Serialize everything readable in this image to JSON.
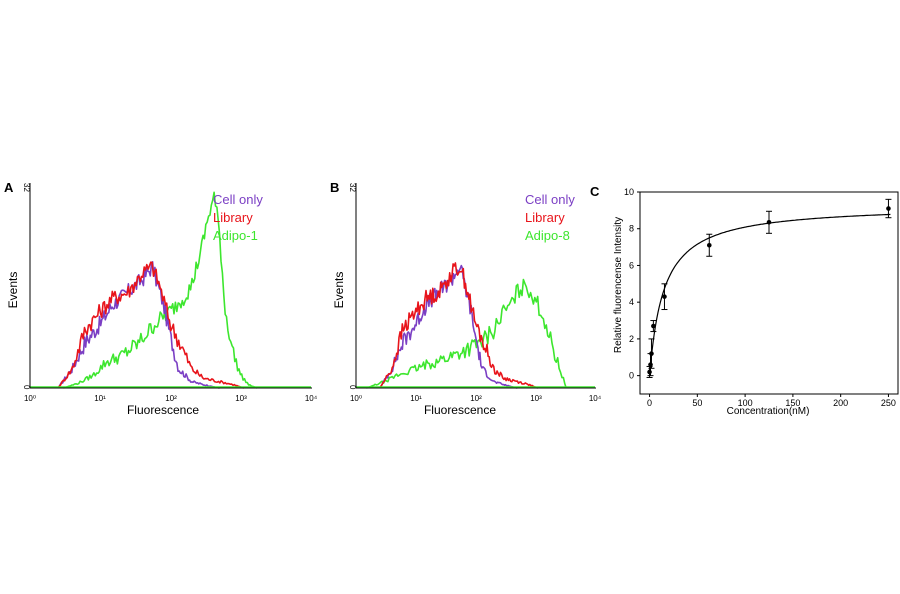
{
  "chart_data": [
    {
      "panel": "A",
      "type": "line",
      "xlabel": "Fluorescence",
      "ylabel": "Events",
      "xscale": "log",
      "xlim": [
        1,
        10000
      ],
      "ylim": [
        0,
        32
      ],
      "xticks": [
        "10⁰",
        "10¹",
        "10²",
        "10³",
        "10⁴"
      ],
      "yticks": [
        "0",
        "32"
      ],
      "legend_position": "top-right",
      "series": [
        {
          "name": "Cell only",
          "color": "#7b3fc4",
          "x": [
            2.5,
            4,
            6,
            10,
            15,
            25,
            40,
            55,
            80,
            100,
            130,
            200,
            300,
            500
          ],
          "y": [
            0,
            3,
            7,
            10,
            13,
            15,
            17,
            19,
            13,
            8,
            3,
            1,
            0.5,
            0
          ]
        },
        {
          "name": "Library",
          "color": "#e8141b",
          "x": [
            2.5,
            4,
            6,
            10,
            15,
            25,
            40,
            55,
            70,
            100,
            150,
            200,
            300,
            500,
            800,
            1100
          ],
          "y": [
            0,
            3,
            9,
            12,
            14,
            15,
            18,
            19,
            16,
            10,
            6,
            3,
            1.5,
            1,
            0.5,
            0
          ]
        },
        {
          "name": "Adipo-1",
          "color": "#3de62e",
          "x": [
            3,
            5,
            8,
            12,
            20,
            35,
            60,
            100,
            150,
            200,
            280,
            350,
            420,
            500,
            600,
            800,
            1000,
            1300,
            1700
          ],
          "y": [
            0,
            0.8,
            2,
            4,
            5,
            7,
            10,
            12,
            14,
            16,
            22,
            27,
            30,
            24,
            12,
            5,
            2,
            0.5,
            0
          ]
        }
      ]
    },
    {
      "panel": "B",
      "type": "line",
      "xlabel": "Fluorescence",
      "ylabel": "Events",
      "xscale": "log",
      "xlim": [
        1,
        10000
      ],
      "ylim": [
        0,
        32
      ],
      "xticks": [
        "10⁰",
        "10¹",
        "10²",
        "10³",
        "10⁴"
      ],
      "yticks": [
        "0",
        "32"
      ],
      "legend_position": "top-right",
      "series": [
        {
          "name": "Cell only",
          "color": "#7b3fc4",
          "x": [
            2.5,
            4,
            6,
            10,
            15,
            25,
            40,
            55,
            80,
            100,
            130,
            200,
            300,
            500
          ],
          "y": [
            0,
            3,
            7,
            10,
            13,
            15,
            17,
            19,
            13,
            8,
            3,
            1,
            0.5,
            0
          ]
        },
        {
          "name": "Library",
          "color": "#e8141b",
          "x": [
            2.5,
            4,
            6,
            10,
            15,
            25,
            40,
            55,
            70,
            100,
            150,
            200,
            300,
            500,
            800,
            1100
          ],
          "y": [
            0,
            3,
            9,
            12,
            14,
            15,
            18,
            19,
            16,
            10,
            6,
            3,
            1.5,
            1,
            0.5,
            0
          ]
        },
        {
          "name": "Adipo-8",
          "color": "#3de62e",
          "x": [
            1.5,
            3,
            5,
            10,
            20,
            40,
            70,
            120,
            200,
            300,
            400,
            500,
            700,
            1000,
            1500,
            2000,
            2800,
            3300
          ],
          "y": [
            0,
            1,
            2,
            3,
            4,
            5,
            6,
            7,
            9,
            12,
            13,
            15,
            16,
            14,
            10,
            6,
            2,
            0
          ]
        }
      ]
    },
    {
      "panel": "C",
      "type": "scatter",
      "xlabel": "Concentration(nM)",
      "ylabel": "Relative fluorencense Intensity",
      "xlim": [
        -10,
        260
      ],
      "ylim": [
        -1,
        10
      ],
      "xticks": [
        0,
        50,
        100,
        150,
        200,
        250
      ],
      "yticks": [
        0,
        2,
        4,
        6,
        8,
        10
      ],
      "points": [
        {
          "x": 0,
          "y": 0.2,
          "err": 0.3
        },
        {
          "x": 1,
          "y": 0.6,
          "err": 0.6
        },
        {
          "x": 2,
          "y": 1.2,
          "err": 0.8
        },
        {
          "x": 4,
          "y": 2.7,
          "err": 0.3
        },
        {
          "x": 15.6,
          "y": 4.3,
          "err": 0.7
        },
        {
          "x": 62.5,
          "y": 7.1,
          "err": 0.6
        },
        {
          "x": 125,
          "y": 8.35,
          "err": 0.6
        },
        {
          "x": 250,
          "y": 9.1,
          "err": 0.5
        }
      ],
      "fit": {
        "model": "one-site binding",
        "Bmax": 9.3,
        "Kd": 15
      }
    }
  ],
  "panels": {
    "a": {
      "letter": "A",
      "xlabel": "Fluorescence",
      "ylabel": "Events",
      "ytop": "32",
      "ybottom": "0",
      "xticks": [
        "10⁰",
        "10¹",
        "10²",
        "10³",
        "10⁴"
      ],
      "legend": [
        "Cell only",
        "Library",
        "Adipo-1"
      ]
    },
    "b": {
      "letter": "B",
      "xlabel": "Fluorescence",
      "ylabel": "Events",
      "ytop": "32",
      "ybottom": "0",
      "xticks": [
        "10⁰",
        "10¹",
        "10²",
        "10³",
        "10⁴"
      ],
      "legend": [
        "Cell only",
        "Library",
        "Adipo-8"
      ]
    },
    "c": {
      "letter": "C",
      "xlabel": "Concentration(nM)",
      "ylabel": "Relative fluorencense Intensity",
      "xticks": [
        "0",
        "50",
        "100",
        "150",
        "200",
        "250"
      ],
      "yticks": [
        "0",
        "2",
        "4",
        "6",
        "8",
        "10"
      ]
    }
  },
  "colors": {
    "cell_only": "#7b3fc4",
    "library": "#e8141b",
    "adipo": "#3de62e",
    "axis": "#000000"
  }
}
